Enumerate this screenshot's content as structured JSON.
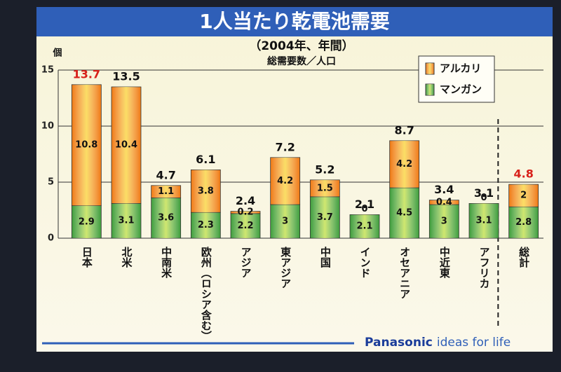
{
  "chart_data": {
    "type": "stacked-bar",
    "title": "1人当たり乾電池需要",
    "subtitle": "（2004年、年間）",
    "note": "総需要数／人口",
    "y_unit": "個",
    "categories": [
      "日本",
      "北米",
      "中南米",
      "欧州（ロシア含む）",
      "アジア",
      "東アジア",
      "中国",
      "インド",
      "オセアニア",
      "中近東",
      "アフリカ",
      "総計"
    ],
    "series": [
      {
        "name": "マンガン",
        "color": "#3f9e3a",
        "values": [
          2.9,
          3.1,
          3.6,
          2.3,
          2.2,
          3.0,
          3.7,
          2.1,
          4.5,
          3.0,
          3.1,
          2.8
        ]
      },
      {
        "name": "アルカリ",
        "color": "#f07a12",
        "values": [
          10.8,
          10.4,
          1.1,
          3.8,
          0.2,
          4.2,
          1.5,
          0,
          4.2,
          0.4,
          0,
          2.0
        ]
      }
    ],
    "totals": {
      "values": [
        13.7,
        13.5,
        4.7,
        6.1,
        2.4,
        7.2,
        5.2,
        2.1,
        8.7,
        3.4,
        3.1,
        4.8
      ],
      "colors": [
        "#d8201a",
        "#111111",
        "#111111",
        "#111111",
        "#111111",
        "#111111",
        "#111111",
        "#111111",
        "#111111",
        "#111111",
        "#111111",
        "#d8201a"
      ]
    },
    "ylim": [
      0,
      15
    ],
    "yticks": [
      0,
      5,
      10,
      15
    ],
    "grid": true,
    "legend_position": "upper-right",
    "footer": {
      "brand": "Panasonic",
      "tagline": "ideas for life"
    }
  }
}
